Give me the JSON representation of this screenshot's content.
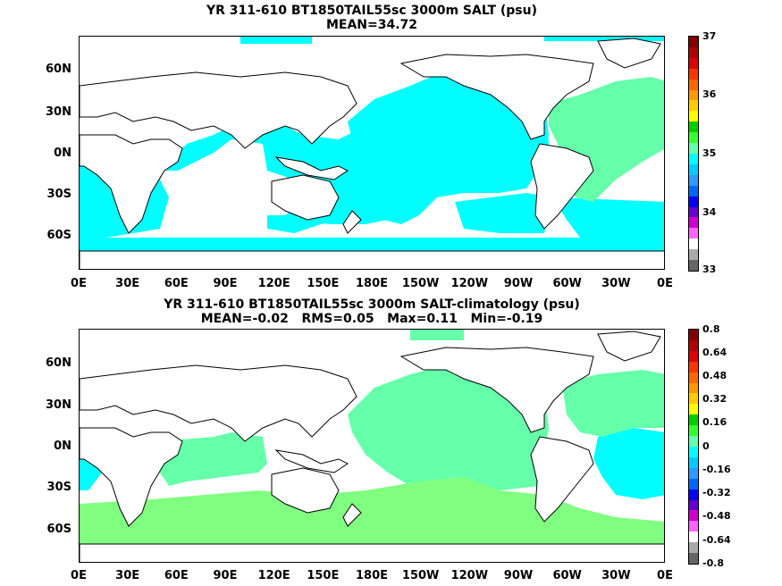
{
  "top": {
    "title": "YR 311-610 BT1850TAIL55sc 3000m SALT (psu)",
    "stats": "MEAN=34.72",
    "ylabels": [
      "60N",
      "30N",
      "0N",
      "30S",
      "60S"
    ],
    "xlabels": [
      "0E",
      "30E",
      "60E",
      "90E",
      "120E",
      "150E",
      "180E",
      "150W",
      "120W",
      "90W",
      "60W",
      "30W",
      "0E"
    ],
    "colorbar_labels": [
      "37",
      "36",
      "35",
      "34",
      "33"
    ],
    "colorbar_colors": [
      "#7f0000",
      "#b00000",
      "#e00000",
      "#ff3300",
      "#ff6600",
      "#ff9900",
      "#ffcc00",
      "#ffff00",
      "#00cc00",
      "#33ff33",
      "#66ffaa",
      "#00ffff",
      "#00ccff",
      "#3399ff",
      "#0066ff",
      "#0000ff",
      "#6600cc",
      "#cc00cc",
      "#ff66ff",
      "#ffffff",
      "#aaaaaa",
      "#666666"
    ]
  },
  "bottom": {
    "title": "YR 311-610 BT1850TAIL55sc 3000m SALT-climatology (psu)",
    "stats": "MEAN=-0.02   RMS=0.05   Max=0.11   Min=-0.19",
    "ylabels": [
      "60N",
      "30N",
      "0N",
      "30S",
      "60S"
    ],
    "xlabels": [
      "0E",
      "30E",
      "60E",
      "90E",
      "120E",
      "150E",
      "180E",
      "150W",
      "120W",
      "90W",
      "60W",
      "30W",
      "0E"
    ],
    "colorbar_labels": [
      "0.8",
      "0.64",
      "0.48",
      "0.32",
      "0.16",
      "0",
      "-0.16",
      "-0.32",
      "-0.48",
      "-0.64",
      "-0.8"
    ],
    "colorbar_colors": [
      "#7f0000",
      "#b00000",
      "#e00000",
      "#ff3300",
      "#ff6600",
      "#ff9900",
      "#ffcc00",
      "#ffff00",
      "#00cc00",
      "#33ff33",
      "#66ffaa",
      "#00ffff",
      "#00ccff",
      "#3399ff",
      "#0066ff",
      "#0000ff",
      "#6600cc",
      "#cc00cc",
      "#ff66ff",
      "#ffffff",
      "#aaaaaa",
      "#666666"
    ]
  },
  "colors": {
    "ocean_top": "#00ffff",
    "atlantic_top": "#66ffaa",
    "ocean_bottom_main": "#66ffaa",
    "ocean_bottom_south": "#80ff80",
    "atlantic_bottom": "#00ffff",
    "land": "#ffffff"
  }
}
